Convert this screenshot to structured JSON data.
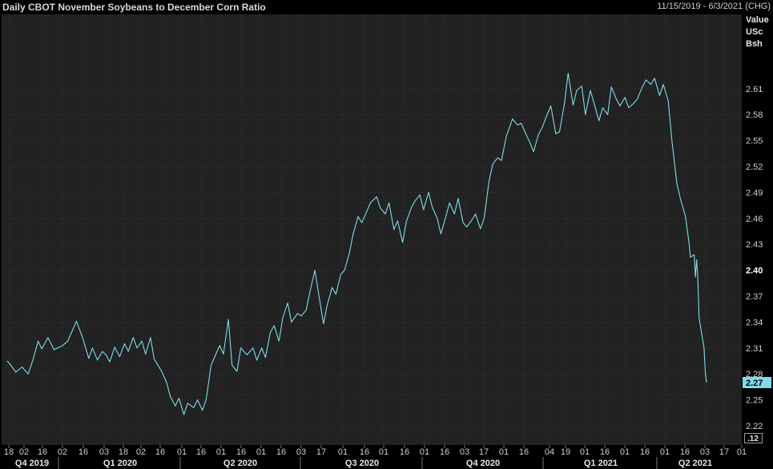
{
  "header": {
    "title": "Daily CBOT November Soybeans to December Corn Ratio",
    "date_range": "11/15/2019 - 6/3/2021 (CHG)"
  },
  "value_axis_header": [
    "Value",
    "USc",
    "Bsh"
  ],
  "colors": {
    "line": "#7fdce8",
    "last_value_bg": "#7fdce8",
    "plot_bg": "#222222",
    "grid": "#333333",
    "text": "#d0d0d0"
  },
  "chart_data": {
    "type": "line",
    "title": "Daily CBOT November Soybeans to December Corn Ratio",
    "x_range": [
      "2019-11-15",
      "2021-06-03"
    ],
    "ylim": [
      2.205,
      2.675
    ],
    "y_ticks": [
      "2.22",
      "2.25",
      "2.28",
      "2.31",
      "2.34",
      "2.37",
      "2.40",
      "2.43",
      "2.46",
      "2.49",
      "2.52",
      "2.55",
      "2.58",
      "2.61"
    ],
    "y_ticks_bold": [
      "2.40"
    ],
    "last_value": "2.27",
    "scale_indicator": ".12",
    "x_day_ticks": [
      "18",
      "02",
      "16",
      "02",
      "16",
      "03",
      "18",
      "02",
      "16",
      "01",
      "16",
      "01",
      "16",
      "01",
      "16",
      "03",
      "17",
      "01",
      "16",
      "01",
      "16",
      "01",
      "16",
      "03",
      "17",
      "01",
      "16",
      "04",
      "19",
      "01",
      "16",
      "01",
      "16",
      "01",
      "16",
      "03",
      "17",
      "01"
    ],
    "x_period_labels": [
      "Q4 2019",
      "Q1 2020",
      "Q2 2020",
      "Q3 2020",
      "Q4 2020",
      "Q1 2021",
      "Q2 2021"
    ],
    "series": [
      {
        "points": [
          [
            "2019-11-15",
            2.295
          ],
          [
            "2019-11-18",
            2.29
          ],
          [
            "2019-11-22",
            2.282
          ],
          [
            "2019-11-27",
            2.288
          ],
          [
            "2019-12-02",
            2.28
          ],
          [
            "2019-12-06",
            2.297
          ],
          [
            "2019-12-10",
            2.318
          ],
          [
            "2019-12-13",
            2.309
          ],
          [
            "2019-12-18",
            2.322
          ],
          [
            "2019-12-23",
            2.308
          ],
          [
            "2019-12-30",
            2.313
          ],
          [
            "2020-01-03",
            2.318
          ],
          [
            "2020-01-07",
            2.331
          ],
          [
            "2020-01-10",
            2.341
          ],
          [
            "2020-01-15",
            2.322
          ],
          [
            "2020-01-20",
            2.298
          ],
          [
            "2020-01-23",
            2.31
          ],
          [
            "2020-01-27",
            2.296
          ],
          [
            "2020-01-31",
            2.306
          ],
          [
            "2020-02-03",
            2.302
          ],
          [
            "2020-02-06",
            2.294
          ],
          [
            "2020-02-10",
            2.311
          ],
          [
            "2020-02-14",
            2.3
          ],
          [
            "2020-02-18",
            2.315
          ],
          [
            "2020-02-21",
            2.306
          ],
          [
            "2020-02-25",
            2.322
          ],
          [
            "2020-02-28",
            2.31
          ],
          [
            "2020-03-03",
            2.318
          ],
          [
            "2020-03-06",
            2.303
          ],
          [
            "2020-03-10",
            2.322
          ],
          [
            "2020-03-13",
            2.297
          ],
          [
            "2020-03-16",
            2.29
          ],
          [
            "2020-03-19",
            2.283
          ],
          [
            "2020-03-23",
            2.27
          ],
          [
            "2020-03-26",
            2.254
          ],
          [
            "2020-03-30",
            2.243
          ],
          [
            "2020-04-02",
            2.252
          ],
          [
            "2020-04-06",
            2.233
          ],
          [
            "2020-04-09",
            2.246
          ],
          [
            "2020-04-14",
            2.241
          ],
          [
            "2020-04-17",
            2.25
          ],
          [
            "2020-04-21",
            2.238
          ],
          [
            "2020-04-24",
            2.25
          ],
          [
            "2020-04-28",
            2.29
          ],
          [
            "2020-05-01",
            2.3
          ],
          [
            "2020-05-05",
            2.313
          ],
          [
            "2020-05-08",
            2.303
          ],
          [
            "2020-05-12",
            2.343
          ],
          [
            "2020-05-15",
            2.29
          ],
          [
            "2020-05-19",
            2.283
          ],
          [
            "2020-05-22",
            2.31
          ],
          [
            "2020-05-27",
            2.302
          ],
          [
            "2020-06-01",
            2.31
          ],
          [
            "2020-06-04",
            2.296
          ],
          [
            "2020-06-08",
            2.31
          ],
          [
            "2020-06-11",
            2.299
          ],
          [
            "2020-06-15",
            2.328
          ],
          [
            "2020-06-18",
            2.336
          ],
          [
            "2020-06-22",
            2.318
          ],
          [
            "2020-06-25",
            2.345
          ],
          [
            "2020-06-29",
            2.362
          ],
          [
            "2020-07-02",
            2.34
          ],
          [
            "2020-07-07",
            2.35
          ],
          [
            "2020-07-10",
            2.347
          ],
          [
            "2020-07-14",
            2.354
          ],
          [
            "2020-07-17",
            2.375
          ],
          [
            "2020-07-21",
            2.4
          ],
          [
            "2020-07-24",
            2.373
          ],
          [
            "2020-07-28",
            2.338
          ],
          [
            "2020-07-31",
            2.36
          ],
          [
            "2020-08-04",
            2.38
          ],
          [
            "2020-08-07",
            2.372
          ],
          [
            "2020-08-11",
            2.395
          ],
          [
            "2020-08-14",
            2.4
          ],
          [
            "2020-08-18",
            2.42
          ],
          [
            "2020-08-21",
            2.442
          ],
          [
            "2020-08-25",
            2.462
          ],
          [
            "2020-08-28",
            2.455
          ],
          [
            "2020-09-01",
            2.468
          ],
          [
            "2020-09-04",
            2.478
          ],
          [
            "2020-09-09",
            2.485
          ],
          [
            "2020-09-12",
            2.472
          ],
          [
            "2020-09-16",
            2.465
          ],
          [
            "2020-09-19",
            2.478
          ],
          [
            "2020-09-23",
            2.447
          ],
          [
            "2020-09-26",
            2.457
          ],
          [
            "2020-09-30",
            2.432
          ],
          [
            "2020-10-03",
            2.456
          ],
          [
            "2020-10-07",
            2.472
          ],
          [
            "2020-10-10",
            2.48
          ],
          [
            "2020-10-14",
            2.487
          ],
          [
            "2020-10-17",
            2.47
          ],
          [
            "2020-10-21",
            2.49
          ],
          [
            "2020-10-24",
            2.473
          ],
          [
            "2020-10-28",
            2.46
          ],
          [
            "2020-10-31",
            2.442
          ],
          [
            "2020-11-04",
            2.462
          ],
          [
            "2020-11-07",
            2.478
          ],
          [
            "2020-11-11",
            2.465
          ],
          [
            "2020-11-14",
            2.483
          ],
          [
            "2020-11-18",
            2.455
          ],
          [
            "2020-11-21",
            2.45
          ],
          [
            "2020-11-25",
            2.458
          ],
          [
            "2020-11-28",
            2.465
          ],
          [
            "2020-12-02",
            2.448
          ],
          [
            "2020-12-05",
            2.46
          ],
          [
            "2020-12-09",
            2.503
          ],
          [
            "2020-12-12",
            2.523
          ],
          [
            "2020-12-16",
            2.53
          ],
          [
            "2020-12-19",
            2.527
          ],
          [
            "2020-12-23",
            2.555
          ],
          [
            "2020-12-28",
            2.575
          ],
          [
            "2021-01-01",
            2.568
          ],
          [
            "2021-01-04",
            2.57
          ],
          [
            "2021-01-07",
            2.56
          ],
          [
            "2021-01-11",
            2.548
          ],
          [
            "2021-01-14",
            2.537
          ],
          [
            "2021-01-18",
            2.557
          ],
          [
            "2021-01-21",
            2.565
          ],
          [
            "2021-01-25",
            2.58
          ],
          [
            "2021-01-28",
            2.59
          ],
          [
            "2021-02-01",
            2.558
          ],
          [
            "2021-02-04",
            2.56
          ],
          [
            "2021-02-08",
            2.593
          ],
          [
            "2021-02-11",
            2.628
          ],
          [
            "2021-02-15",
            2.591
          ],
          [
            "2021-02-18",
            2.608
          ],
          [
            "2021-02-22",
            2.613
          ],
          [
            "2021-02-25",
            2.58
          ],
          [
            "2021-03-01",
            2.608
          ],
          [
            "2021-03-04",
            2.593
          ],
          [
            "2021-03-08",
            2.573
          ],
          [
            "2021-03-11",
            2.588
          ],
          [
            "2021-03-15",
            2.58
          ],
          [
            "2021-03-18",
            2.612
          ],
          [
            "2021-03-22",
            2.598
          ],
          [
            "2021-03-25",
            2.59
          ],
          [
            "2021-03-29",
            2.6
          ],
          [
            "2021-04-01",
            2.588
          ],
          [
            "2021-04-05",
            2.593
          ],
          [
            "2021-04-08",
            2.598
          ],
          [
            "2021-04-12",
            2.612
          ],
          [
            "2021-04-15",
            2.62
          ],
          [
            "2021-04-19",
            2.615
          ],
          [
            "2021-04-22",
            2.622
          ],
          [
            "2021-04-26",
            2.602
          ],
          [
            "2021-04-29",
            2.615
          ],
          [
            "2021-05-03",
            2.596
          ],
          [
            "2021-05-06",
            2.55
          ],
          [
            "2021-05-10",
            2.5
          ],
          [
            "2021-05-13",
            2.482
          ],
          [
            "2021-05-17",
            2.462
          ],
          [
            "2021-05-20",
            2.43
          ],
          [
            "2021-05-21",
            2.415
          ],
          [
            "2021-05-24",
            2.418
          ],
          [
            "2021-05-25",
            2.392
          ],
          [
            "2021-05-26",
            2.412
          ],
          [
            "2021-05-27",
            2.39
          ],
          [
            "2021-05-28",
            2.345
          ],
          [
            "2021-06-01",
            2.31
          ],
          [
            "2021-06-02",
            2.282
          ],
          [
            "2021-06-03",
            2.27
          ]
        ]
      }
    ]
  }
}
